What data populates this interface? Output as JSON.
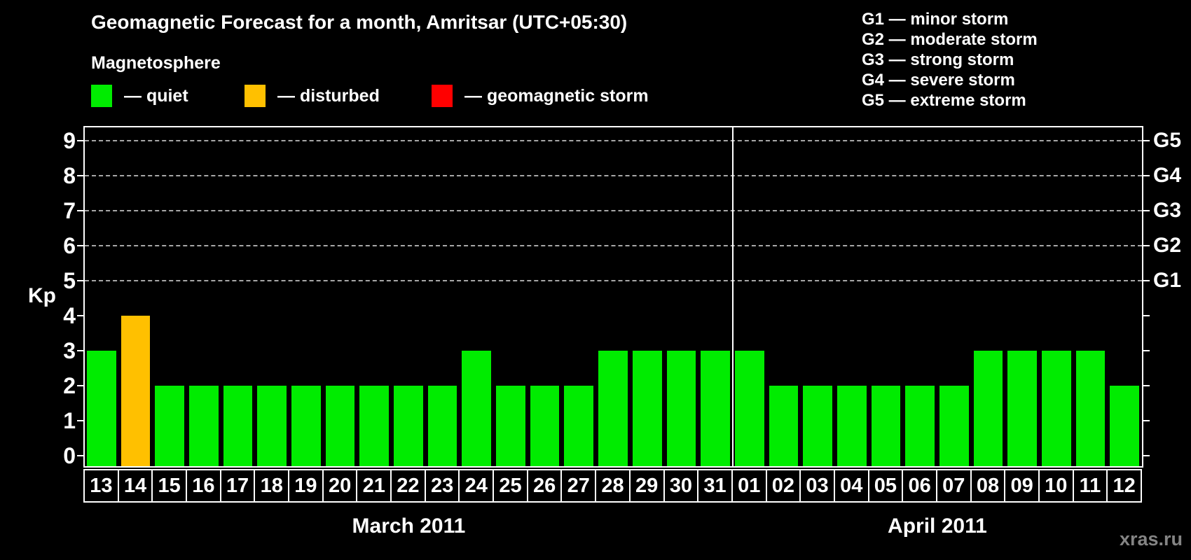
{
  "title": "Geomagnetic Forecast for a month, Amritsar (UTC+05:30)",
  "legend": {
    "title": "Magnetosphere",
    "items": [
      {
        "label": "— quiet",
        "color": "#00EC00"
      },
      {
        "label": "— disturbed",
        "color": "#FFC000"
      },
      {
        "label": "— geomagnetic storm",
        "color": "#FF0000"
      }
    ]
  },
  "storm_legend": {
    "items": [
      "G1 — minor storm",
      "G2 — moderate storm",
      "G3 — strong storm",
      "G4 — severe storm",
      "G5 — extreme storm"
    ]
  },
  "watermark": "xras.ru",
  "chart_data": {
    "type": "bar",
    "ylabel": "Kp",
    "ylim": [
      0,
      9
    ],
    "yticks": [
      0,
      1,
      2,
      3,
      4,
      5,
      6,
      7,
      8,
      9
    ],
    "gridlines": [
      5,
      6,
      7,
      8,
      9
    ],
    "grid_style": "dashed",
    "legend_position": "top",
    "right_axis": [
      {
        "kp": 5,
        "label": "G1"
      },
      {
        "kp": 6,
        "label": "G2"
      },
      {
        "kp": 7,
        "label": "G3"
      },
      {
        "kp": 8,
        "label": "G4"
      },
      {
        "kp": 9,
        "label": "G5"
      }
    ],
    "status_colors": {
      "quiet": "#00EC00",
      "disturbed": "#FFC000",
      "storm": "#FF0000"
    },
    "months": [
      {
        "label": "March 2011",
        "bars": [
          {
            "day": "13",
            "kp": 3,
            "status": "quiet"
          },
          {
            "day": "14",
            "kp": 4,
            "status": "disturbed"
          },
          {
            "day": "15",
            "kp": 2,
            "status": "quiet"
          },
          {
            "day": "16",
            "kp": 2,
            "status": "quiet"
          },
          {
            "day": "17",
            "kp": 2,
            "status": "quiet"
          },
          {
            "day": "18",
            "kp": 2,
            "status": "quiet"
          },
          {
            "day": "19",
            "kp": 2,
            "status": "quiet"
          },
          {
            "day": "20",
            "kp": 2,
            "status": "quiet"
          },
          {
            "day": "21",
            "kp": 2,
            "status": "quiet"
          },
          {
            "day": "22",
            "kp": 2,
            "status": "quiet"
          },
          {
            "day": "23",
            "kp": 2,
            "status": "quiet"
          },
          {
            "day": "24",
            "kp": 3,
            "status": "quiet"
          },
          {
            "day": "25",
            "kp": 2,
            "status": "quiet"
          },
          {
            "day": "26",
            "kp": 2,
            "status": "quiet"
          },
          {
            "day": "27",
            "kp": 2,
            "status": "quiet"
          },
          {
            "day": "28",
            "kp": 3,
            "status": "quiet"
          },
          {
            "day": "29",
            "kp": 3,
            "status": "quiet"
          },
          {
            "day": "30",
            "kp": 3,
            "status": "quiet"
          },
          {
            "day": "31",
            "kp": 3,
            "status": "quiet"
          }
        ]
      },
      {
        "label": "April 2011",
        "bars": [
          {
            "day": "01",
            "kp": 3,
            "status": "quiet"
          },
          {
            "day": "02",
            "kp": 2,
            "status": "quiet"
          },
          {
            "day": "03",
            "kp": 2,
            "status": "quiet"
          },
          {
            "day": "04",
            "kp": 2,
            "status": "quiet"
          },
          {
            "day": "05",
            "kp": 2,
            "status": "quiet"
          },
          {
            "day": "06",
            "kp": 2,
            "status": "quiet"
          },
          {
            "day": "07",
            "kp": 2,
            "status": "quiet"
          },
          {
            "day": "08",
            "kp": 3,
            "status": "quiet"
          },
          {
            "day": "09",
            "kp": 3,
            "status": "quiet"
          },
          {
            "day": "10",
            "kp": 3,
            "status": "quiet"
          },
          {
            "day": "11",
            "kp": 3,
            "status": "quiet"
          },
          {
            "day": "12",
            "kp": 2,
            "status": "quiet"
          }
        ]
      }
    ]
  }
}
